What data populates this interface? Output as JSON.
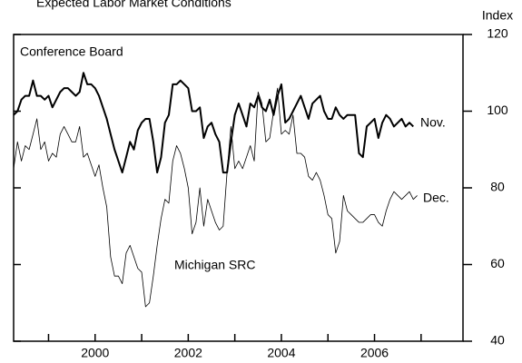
{
  "chart_data": {
    "type": "line",
    "title": "Expected Labor Market Conditions",
    "y_label": "Index",
    "y_axis_side": "right",
    "x": [
      1998.25,
      1998.333,
      1998.417,
      1998.5,
      1998.583,
      1998.667,
      1998.75,
      1998.833,
      1998.917,
      1999,
      1999.083,
      1999.167,
      1999.25,
      1999.333,
      1999.417,
      1999.5,
      1999.583,
      1999.667,
      1999.75,
      1999.833,
      1999.917,
      2000,
      2000.083,
      2000.167,
      2000.25,
      2000.333,
      2000.417,
      2000.5,
      2000.583,
      2000.667,
      2000.75,
      2000.833,
      2000.917,
      2001,
      2001.083,
      2001.167,
      2001.25,
      2001.333,
      2001.417,
      2001.5,
      2001.583,
      2001.667,
      2001.75,
      2001.833,
      2001.917,
      2002,
      2002.083,
      2002.167,
      2002.25,
      2002.333,
      2002.417,
      2002.5,
      2002.583,
      2002.667,
      2002.75,
      2002.833,
      2002.917,
      2003,
      2003.083,
      2003.167,
      2003.25,
      2003.333,
      2003.417,
      2003.5,
      2003.583,
      2003.667,
      2003.75,
      2003.833,
      2003.917,
      2004,
      2004.083,
      2004.167,
      2004.25,
      2004.333,
      2004.417,
      2004.5,
      2004.583,
      2004.667,
      2004.75,
      2004.833,
      2004.917,
      2005,
      2005.083,
      2005.167,
      2005.25,
      2005.333,
      2005.417,
      2005.5,
      2005.583,
      2005.667,
      2005.75,
      2005.833,
      2005.917,
      2006,
      2006.083,
      2006.167,
      2006.25,
      2006.333,
      2006.417,
      2006.5,
      2006.583,
      2006.667,
      2006.75,
      2006.833,
      2006.917
    ],
    "series": [
      {
        "name": "Conference Board",
        "color": "#000000",
        "line_width": 2,
        "values": [
          99,
          100,
          103,
          104,
          104,
          108,
          104,
          104,
          103,
          104,
          101,
          103,
          105,
          106,
          106,
          105,
          104,
          105,
          110,
          107,
          107,
          106,
          104,
          101,
          98,
          94,
          90,
          87,
          84,
          88,
          92,
          90,
          95,
          97,
          98,
          98,
          92,
          84,
          88,
          97,
          99,
          107,
          107,
          108,
          107,
          106,
          100,
          100,
          101,
          93,
          96,
          97,
          94,
          92,
          84,
          84,
          92,
          99,
          102,
          99,
          96,
          102,
          101,
          104,
          101,
          100,
          103,
          99,
          104,
          107,
          97,
          98,
          100,
          102,
          104,
          101,
          98,
          102,
          103,
          104,
          100,
          98,
          98,
          101,
          99,
          98,
          99,
          99,
          99,
          89,
          88,
          96,
          97,
          98,
          93,
          97,
          99,
          98,
          96,
          97,
          98,
          96,
          97,
          96,
          null
        ]
      },
      {
        "name": "Michigan SRC",
        "color": "#000000",
        "line_width": 0.8,
        "values": [
          85,
          92,
          87,
          91,
          90,
          94,
          98,
          90,
          92,
          87,
          89,
          88,
          94,
          96,
          94,
          92,
          92,
          96,
          88,
          89,
          86,
          83,
          86,
          80,
          75,
          62,
          57,
          57,
          55,
          63,
          65,
          62,
          59,
          58,
          49,
          50,
          57,
          65,
          72,
          77,
          76,
          87,
          91,
          89,
          85,
          80,
          68,
          71,
          80,
          70,
          77,
          74,
          71,
          69,
          70,
          84,
          96,
          85,
          87,
          85,
          88,
          91,
          87,
          105,
          102,
          92,
          93,
          100,
          106,
          94,
          95,
          94,
          99,
          89,
          89,
          88,
          83,
          82,
          84,
          82,
          78,
          73,
          72,
          63,
          66,
          78,
          74,
          73,
          72,
          71,
          71,
          72,
          73,
          73,
          71,
          70,
          74,
          77,
          79,
          78,
          77,
          78,
          79,
          77,
          78
        ]
      }
    ],
    "annotations": [
      "Conference Board",
      "Michigan SRC",
      "Nov.",
      "Dec."
    ],
    "xlim": [
      1998.25,
      2007.9
    ],
    "xticks": [
      2000,
      2002,
      2004,
      2006
    ],
    "xminor": [
      1999,
      2001,
      2003,
      2005,
      2007
    ],
    "ylim": [
      40,
      120
    ],
    "yticks": [
      40,
      60,
      80,
      100,
      120
    ]
  }
}
